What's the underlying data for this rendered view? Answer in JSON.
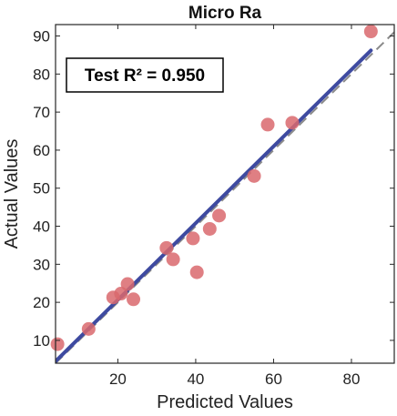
{
  "chart_data": {
    "type": "scatter",
    "title": "Micro Ra",
    "xlabel": "Predicted Values",
    "ylabel": "Actual Values",
    "xlim": [
      4,
      91
    ],
    "ylim": [
      4,
      93
    ],
    "xticks": [
      20,
      40,
      60,
      80
    ],
    "yticks": [
      10,
      20,
      30,
      40,
      50,
      60,
      70,
      80,
      90
    ],
    "grid": false,
    "annotation": "Test R² = 0.950",
    "points": [
      {
        "x": 4.5,
        "y": 9.0
      },
      {
        "x": 12.5,
        "y": 13.0
      },
      {
        "x": 18.8,
        "y": 21.3
      },
      {
        "x": 20.8,
        "y": 22.3
      },
      {
        "x": 22.5,
        "y": 24.8
      },
      {
        "x": 24.0,
        "y": 20.8
      },
      {
        "x": 32.5,
        "y": 34.3
      },
      {
        "x": 34.2,
        "y": 31.3
      },
      {
        "x": 39.3,
        "y": 36.8
      },
      {
        "x": 40.3,
        "y": 27.9
      },
      {
        "x": 43.6,
        "y": 39.3
      },
      {
        "x": 46.0,
        "y": 42.8
      },
      {
        "x": 55.0,
        "y": 53.2
      },
      {
        "x": 58.5,
        "y": 66.7
      },
      {
        "x": 64.8,
        "y": 67.2
      },
      {
        "x": 85.0,
        "y": 91.2
      }
    ],
    "fit_line": {
      "x": [
        4,
        85
      ],
      "y": [
        4.5,
        86.2
      ]
    },
    "reference_line": {
      "x": [
        4,
        91
      ],
      "y": [
        4,
        91
      ]
    },
    "colors": {
      "points": "#d9686d",
      "fit_line": "#3e4aa0",
      "reference_line": "#8a8a8a"
    }
  }
}
